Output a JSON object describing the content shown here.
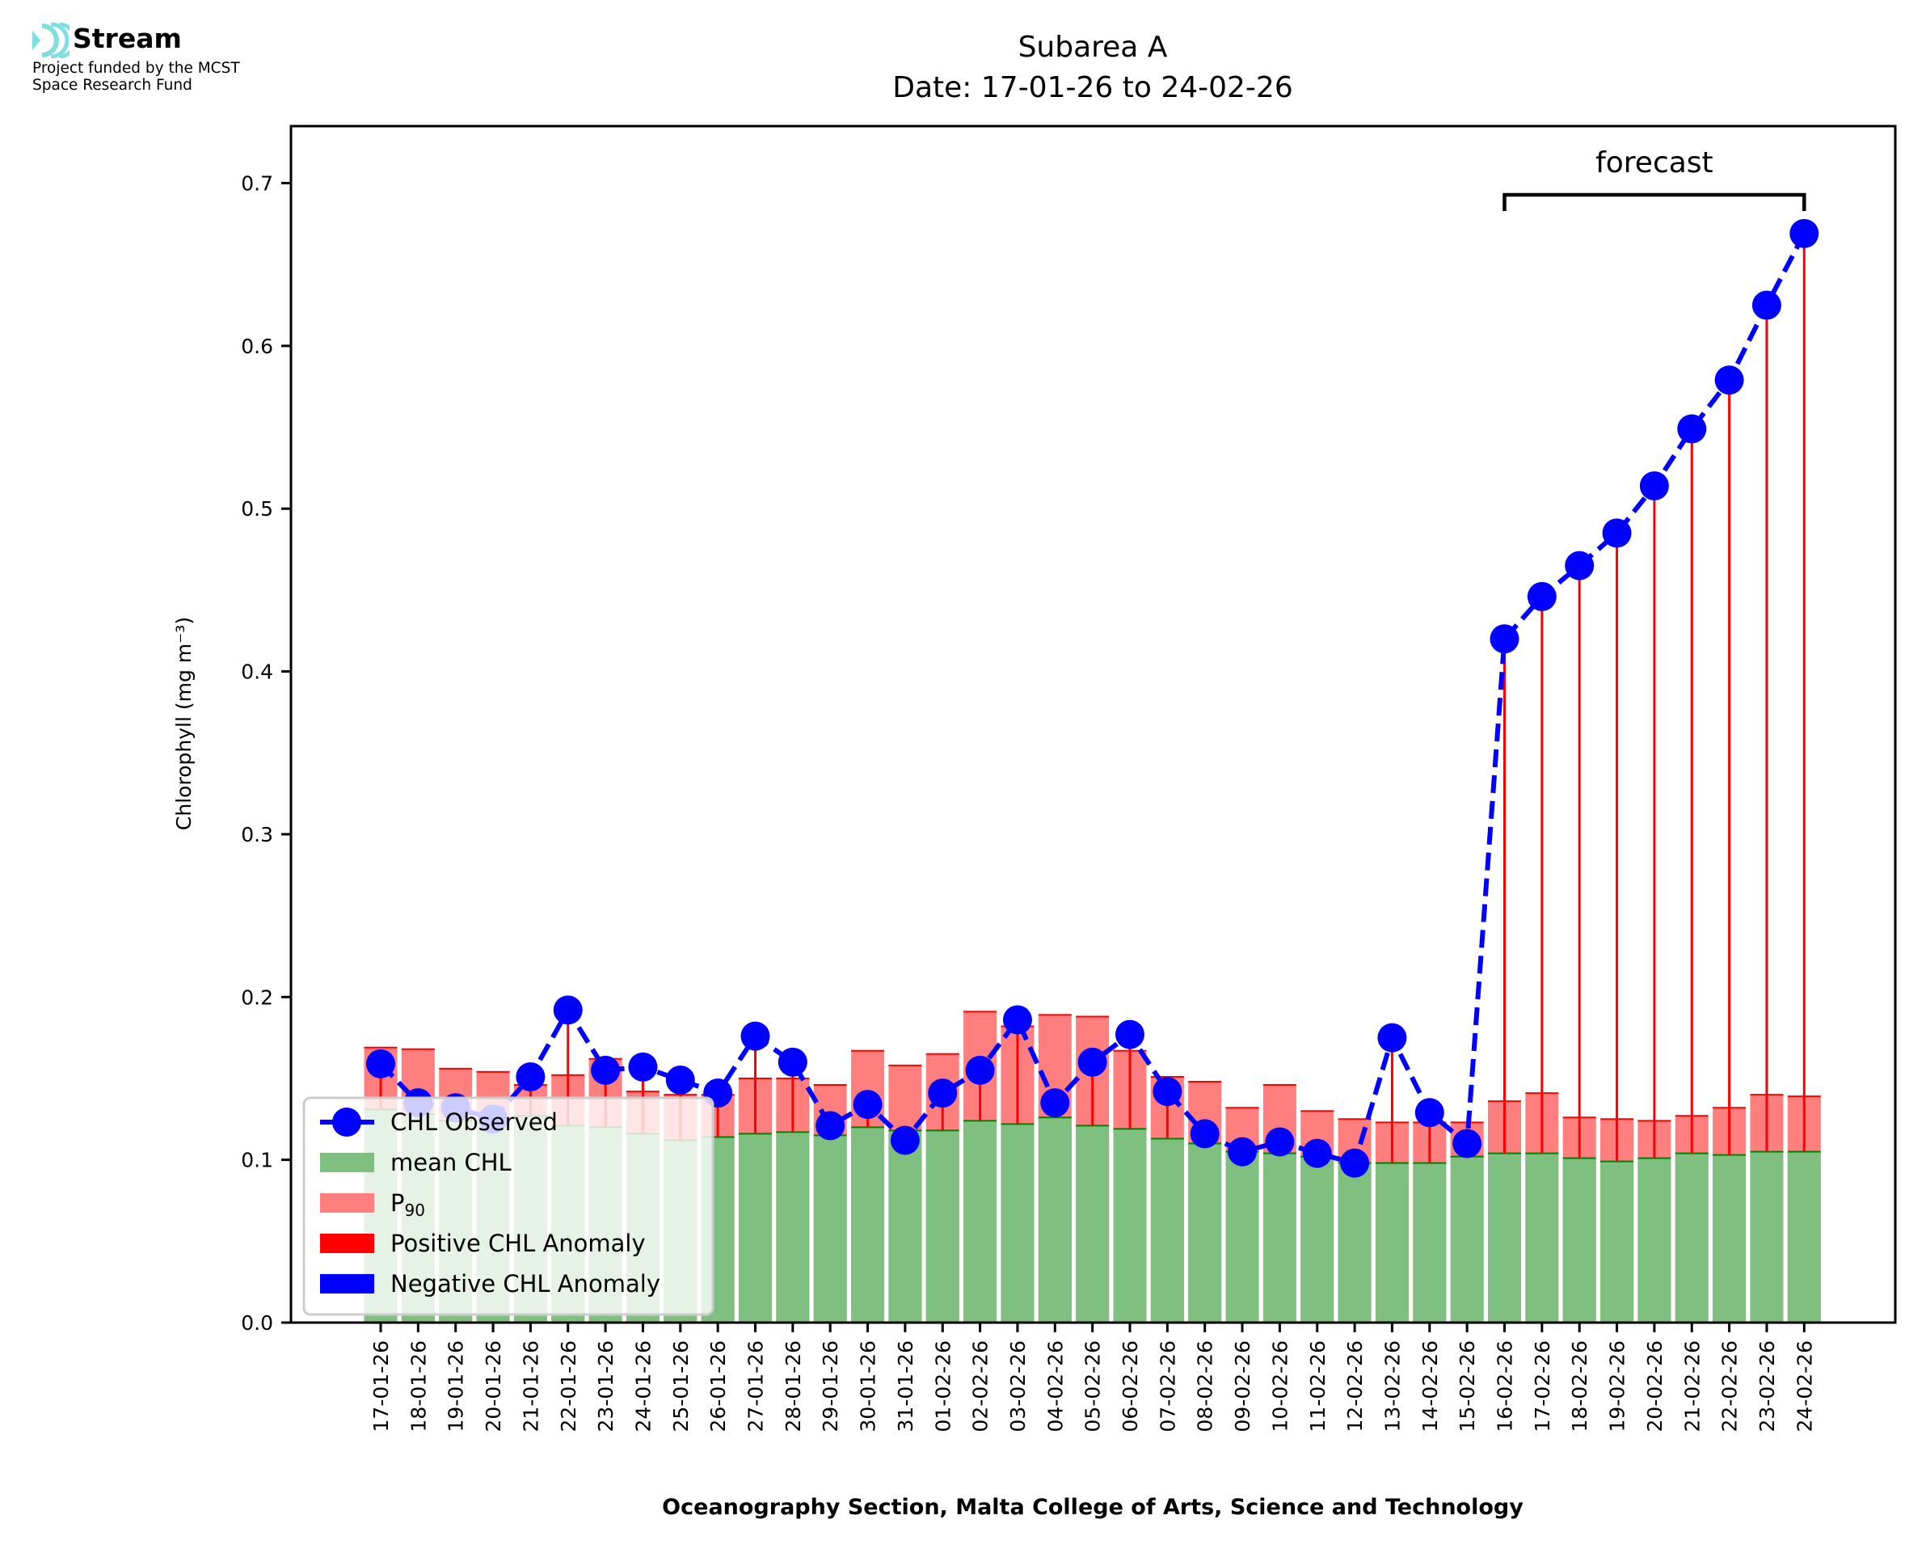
{
  "logo": {
    "icon": "stream-waves-icon",
    "brand": "Stream",
    "funded_line1": "Project funded by the MCST",
    "funded_line2": "Space Research Fund",
    "accent_color": "#7fdfdf"
  },
  "chart_data": {
    "type": "bar",
    "title": "Subarea A",
    "subtitle": "Date: 17-01-26 to 24-02-26",
    "xlabel": "Oceanography Section, Malta College of Arts, Science and Technology",
    "ylabel": "Chlorophyll (mg m⁻³)",
    "ylim": [
      0,
      0.735
    ],
    "yticks": [
      0.0,
      0.1,
      0.2,
      0.3,
      0.4,
      0.5,
      0.6,
      0.7
    ],
    "ytick_labels": [
      "0.0",
      "0.1",
      "0.2",
      "0.3",
      "0.4",
      "0.5",
      "0.6",
      "0.7"
    ],
    "grid": false,
    "legend_position": "lower-left",
    "categories": [
      "17-01-26",
      "18-01-26",
      "19-01-26",
      "20-01-26",
      "21-01-26",
      "22-01-26",
      "23-01-26",
      "24-01-26",
      "25-01-26",
      "26-01-26",
      "27-01-26",
      "28-01-26",
      "29-01-26",
      "30-01-26",
      "31-01-26",
      "01-02-26",
      "02-02-26",
      "03-02-26",
      "04-02-26",
      "05-02-26",
      "06-02-26",
      "07-02-26",
      "08-02-26",
      "09-02-26",
      "10-02-26",
      "11-02-26",
      "12-02-26",
      "13-02-26",
      "14-02-26",
      "15-02-26",
      "16-02-26",
      "17-02-26",
      "18-02-26",
      "19-02-26",
      "20-02-26",
      "21-02-26",
      "22-02-26",
      "23-02-26",
      "24-02-26"
    ],
    "series": [
      {
        "name": "CHL Observed",
        "kind": "line-dashed-markers",
        "color": "#0000ff",
        "values": [
          0.159,
          0.135,
          0.132,
          0.125,
          0.151,
          0.192,
          0.155,
          0.157,
          0.149,
          0.141,
          0.176,
          0.16,
          0.121,
          0.134,
          0.112,
          0.141,
          0.155,
          0.186,
          0.135,
          0.16,
          0.177,
          0.142,
          0.116,
          0.105,
          0.111,
          0.104,
          0.098,
          0.175,
          0.129,
          0.11,
          0.42,
          0.446,
          0.465,
          0.485,
          0.514,
          0.549,
          0.579,
          0.625,
          0.669
        ]
      },
      {
        "name": "mean CHL",
        "kind": "bar",
        "color": "#7fbf7f",
        "values": [
          0.131,
          0.128,
          0.124,
          0.123,
          0.127,
          0.121,
          0.12,
          0.116,
          0.112,
          0.114,
          0.116,
          0.117,
          0.115,
          0.12,
          0.118,
          0.118,
          0.124,
          0.122,
          0.126,
          0.121,
          0.119,
          0.113,
          0.11,
          0.105,
          0.104,
          0.102,
          0.098,
          0.098,
          0.098,
          0.102,
          0.104,
          0.104,
          0.101,
          0.099,
          0.101,
          0.104,
          0.103,
          0.105,
          0.105
        ]
      },
      {
        "name": "P90",
        "kind": "bar",
        "color": "#ff7f7f",
        "values": [
          0.169,
          0.168,
          0.156,
          0.154,
          0.146,
          0.152,
          0.162,
          0.142,
          0.14,
          0.14,
          0.15,
          0.15,
          0.146,
          0.167,
          0.158,
          0.165,
          0.191,
          0.182,
          0.189,
          0.188,
          0.167,
          0.151,
          0.148,
          0.132,
          0.146,
          0.13,
          0.125,
          0.123,
          0.123,
          0.123,
          0.136,
          0.141,
          0.126,
          0.125,
          0.124,
          0.127,
          0.132,
          0.14,
          0.139
        ]
      }
    ],
    "legend": [
      {
        "label": "CHL Observed",
        "swatch": "line-marker",
        "color": "#0000ff"
      },
      {
        "label": "mean CHL",
        "swatch": "patch",
        "color": "#7fbf7f"
      },
      {
        "label": "P",
        "sub": "90",
        "swatch": "patch",
        "color": "#ff7f7f"
      },
      {
        "label": "Positive CHL Anomaly",
        "swatch": "patch",
        "color": "#ff0000"
      },
      {
        "label": "Negative CHL Anomaly",
        "swatch": "patch",
        "color": "#0000ff"
      }
    ],
    "annotation": {
      "text": "forecast",
      "from": "16-02-26",
      "to": "24-02-26"
    },
    "anomaly_colors": {
      "positive": "#ff0000",
      "negative": "#0000ff"
    }
  }
}
